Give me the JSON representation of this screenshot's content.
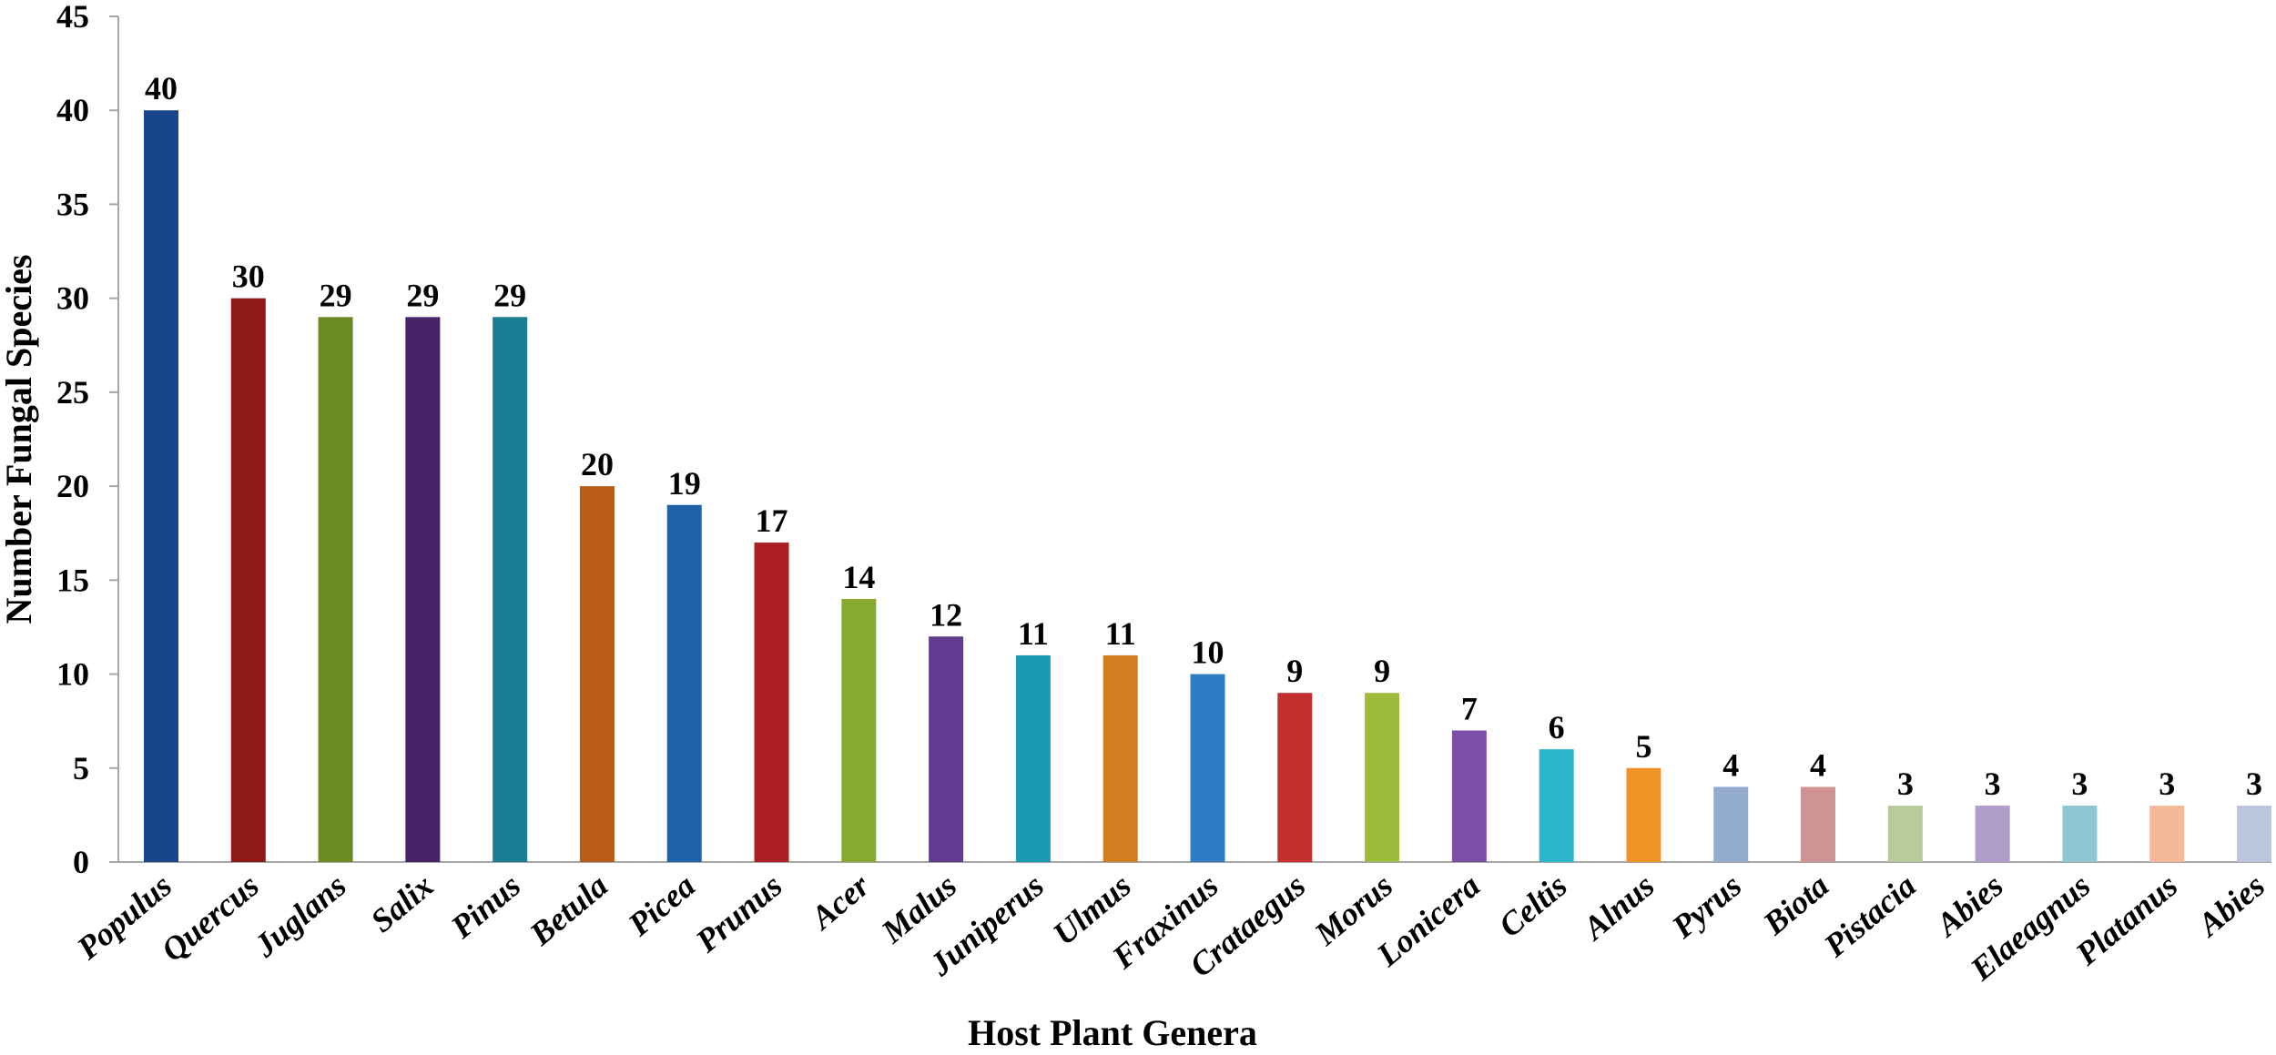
{
  "chart_data": {
    "type": "bar",
    "xlabel": "Host Plant Genera",
    "ylabel": "Number Fungal Species",
    "ylim": [
      0,
      45
    ],
    "yticks": [
      "0",
      "5",
      "10",
      "15",
      "20",
      "25",
      "30",
      "35",
      "40",
      "45"
    ],
    "grid": false,
    "legend": "none",
    "categories": [
      "Populus",
      "Quercus",
      "Juglans",
      "Salix",
      "Pinus",
      "Betula",
      "Picea",
      "Prunus",
      "Acer",
      "Malus",
      "Juniperus",
      "Ulmus",
      "Fraxinus",
      "Crataegus",
      "Morus",
      "Lonicera",
      "Celtis",
      "Alnus",
      "Pyrus",
      "Biota",
      "Pistacia",
      "Abies",
      "Elaeagnus",
      "Platanus",
      "Abies"
    ],
    "values": [
      40,
      30,
      29,
      29,
      29,
      20,
      19,
      17,
      14,
      12,
      11,
      11,
      10,
      9,
      9,
      7,
      6,
      5,
      4,
      4,
      3,
      3,
      3,
      3,
      3
    ],
    "data_labels": [
      "40",
      "30",
      "29",
      "29",
      "29",
      "20",
      "19",
      "17",
      "14",
      "12",
      "11",
      "11",
      "10",
      "9",
      "9",
      "7",
      "6",
      "5",
      "4",
      "4",
      "3",
      "3",
      "3",
      "3",
      "3"
    ],
    "colors": [
      "#17468a",
      "#8f1a17",
      "#6a8a22",
      "#472469",
      "#187c93",
      "#b85c16",
      "#2062a9",
      "#ac2023",
      "#86a92f",
      "#613a92",
      "#1b98b2",
      "#d17d22",
      "#2f7cc4",
      "#c32f2f",
      "#9fbb3b",
      "#7c4ea8",
      "#2cb5cc",
      "#ef9326",
      "#94adcf",
      "#d09394",
      "#b8cb98",
      "#ae9dc7",
      "#8ec6d2",
      "#f4b996",
      "#bcc6da"
    ]
  }
}
